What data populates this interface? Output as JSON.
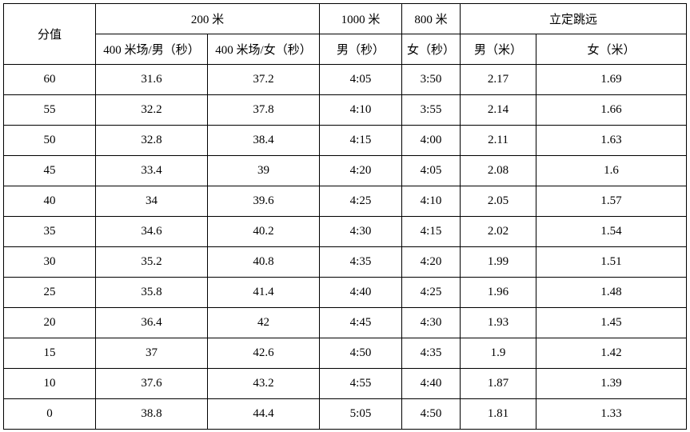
{
  "page": {
    "background_color": "#ffffff",
    "border_color": "#000000",
    "text_color": "#000000"
  },
  "table": {
    "header": {
      "score": "分值",
      "group_200m": "200 米",
      "group_1000m": "1000 米",
      "group_800m": "800 米",
      "group_standing_jump": "立定跳远",
      "sub_400_track_male": "400 米场/男（秒）",
      "sub_400_track_female": "400 米场/女（秒）",
      "sub_1000_male": "男（秒）",
      "sub_800_female": "女（秒）",
      "sub_jump_male": "男（米）",
      "sub_jump_female": "女（米）"
    },
    "rows": [
      [
        "60",
        "31.6",
        "37.2",
        "4:05",
        "3:50",
        "2.17",
        "1.69"
      ],
      [
        "55",
        "32.2",
        "37.8",
        "4:10",
        "3:55",
        "2.14",
        "1.66"
      ],
      [
        "50",
        "32.8",
        "38.4",
        "4:15",
        "4:00",
        "2.11",
        "1.63"
      ],
      [
        "45",
        "33.4",
        "39",
        "4:20",
        "4:05",
        "2.08",
        "1.6"
      ],
      [
        "40",
        "34",
        "39.6",
        "4:25",
        "4:10",
        "2.05",
        "1.57"
      ],
      [
        "35",
        "34.6",
        "40.2",
        "4:30",
        "4:15",
        "2.02",
        "1.54"
      ],
      [
        "30",
        "35.2",
        "40.8",
        "4:35",
        "4:20",
        "1.99",
        "1.51"
      ],
      [
        "25",
        "35.8",
        "41.4",
        "4:40",
        "4:25",
        "1.96",
        "1.48"
      ],
      [
        "20",
        "36.4",
        "42",
        "4:45",
        "4:30",
        "1.93",
        "1.45"
      ],
      [
        "15",
        "37",
        "42.6",
        "4:50",
        "4:35",
        "1.9",
        "1.42"
      ],
      [
        "10",
        "37.6",
        "43.2",
        "4:55",
        "4:40",
        "1.87",
        "1.39"
      ],
      [
        "0",
        "38.8",
        "44.4",
        "5:05",
        "4:50",
        "1.81",
        "1.33"
      ]
    ]
  }
}
